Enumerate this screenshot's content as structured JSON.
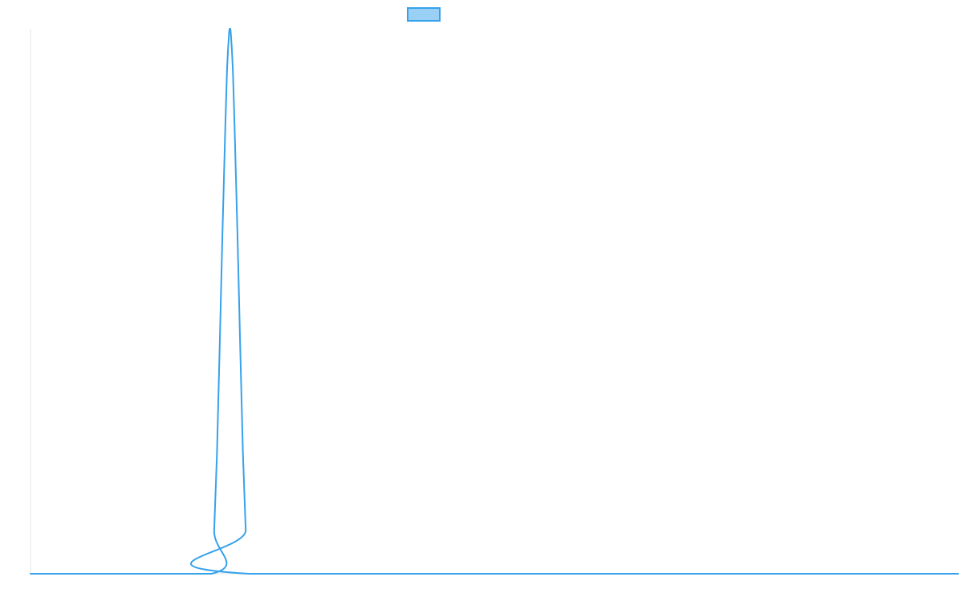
{
  "chart_data": {
    "type": "line",
    "title": "",
    "xlabel": "",
    "ylabel": "",
    "xlim": [
      0,
      100
    ],
    "ylim": [
      0,
      1
    ],
    "grid": false,
    "legend": {
      "placement": "top-center",
      "entries": [
        {
          "label": "",
          "color": "#36a2eb",
          "fill": "#9ad0f5"
        }
      ]
    },
    "series": [
      {
        "color": "#36a2eb",
        "points": [
          {
            "x": 0,
            "y": 0
          },
          {
            "x": 19.5,
            "y": 0
          },
          {
            "x": 19.8,
            "y": 0.08
          },
          {
            "x": 20.1,
            "y": 0.22
          },
          {
            "x": 20.4,
            "y": 0.42
          },
          {
            "x": 20.7,
            "y": 0.63
          },
          {
            "x": 21.0,
            "y": 0.82
          },
          {
            "x": 21.2,
            "y": 0.93
          },
          {
            "x": 21.4,
            "y": 0.99
          },
          {
            "x": 21.5,
            "y": 1.0
          },
          {
            "x": 21.6,
            "y": 0.99
          },
          {
            "x": 21.8,
            "y": 0.93
          },
          {
            "x": 22.0,
            "y": 0.82
          },
          {
            "x": 22.3,
            "y": 0.63
          },
          {
            "x": 22.6,
            "y": 0.42
          },
          {
            "x": 22.9,
            "y": 0.22
          },
          {
            "x": 23.2,
            "y": 0.08
          },
          {
            "x": 23.5,
            "y": 0
          },
          {
            "x": 100,
            "y": 0
          }
        ]
      }
    ]
  }
}
